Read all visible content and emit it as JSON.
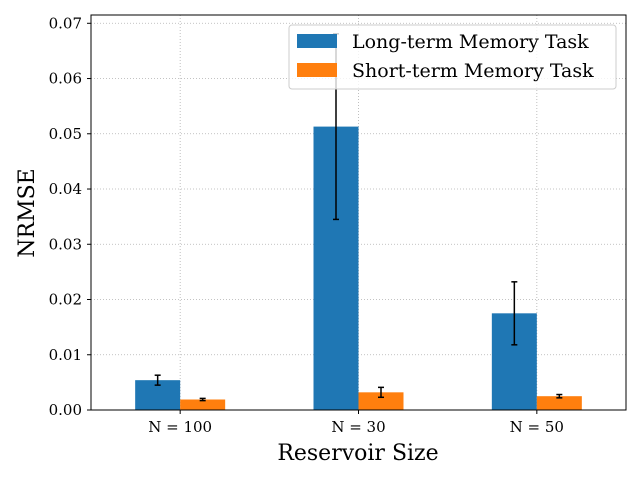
{
  "chart_data": {
    "type": "bar",
    "categories": [
      "N = 100",
      "N = 30",
      "N = 50"
    ],
    "xlabel": "Reservoir Size",
    "ylabel": "NRMSE",
    "ylim": [
      0,
      0.0715
    ],
    "yticks": [
      "0.00",
      "0.01",
      "0.02",
      "0.03",
      "0.04",
      "0.05",
      "0.06",
      "0.07"
    ],
    "grid": true,
    "legend_position": "top-right",
    "series": [
      {
        "name": "Long-term Memory Task",
        "color": "#1f77b4",
        "values": [
          0.0054,
          0.0513,
          0.0175
        ],
        "errors": [
          0.0009,
          0.0168,
          0.0057
        ]
      },
      {
        "name": "Short-term Memory Task",
        "color": "#ff7f0e",
        "values": [
          0.0019,
          0.0032,
          0.0025
        ],
        "errors": [
          0.0002,
          0.0009,
          0.0003
        ]
      }
    ]
  }
}
